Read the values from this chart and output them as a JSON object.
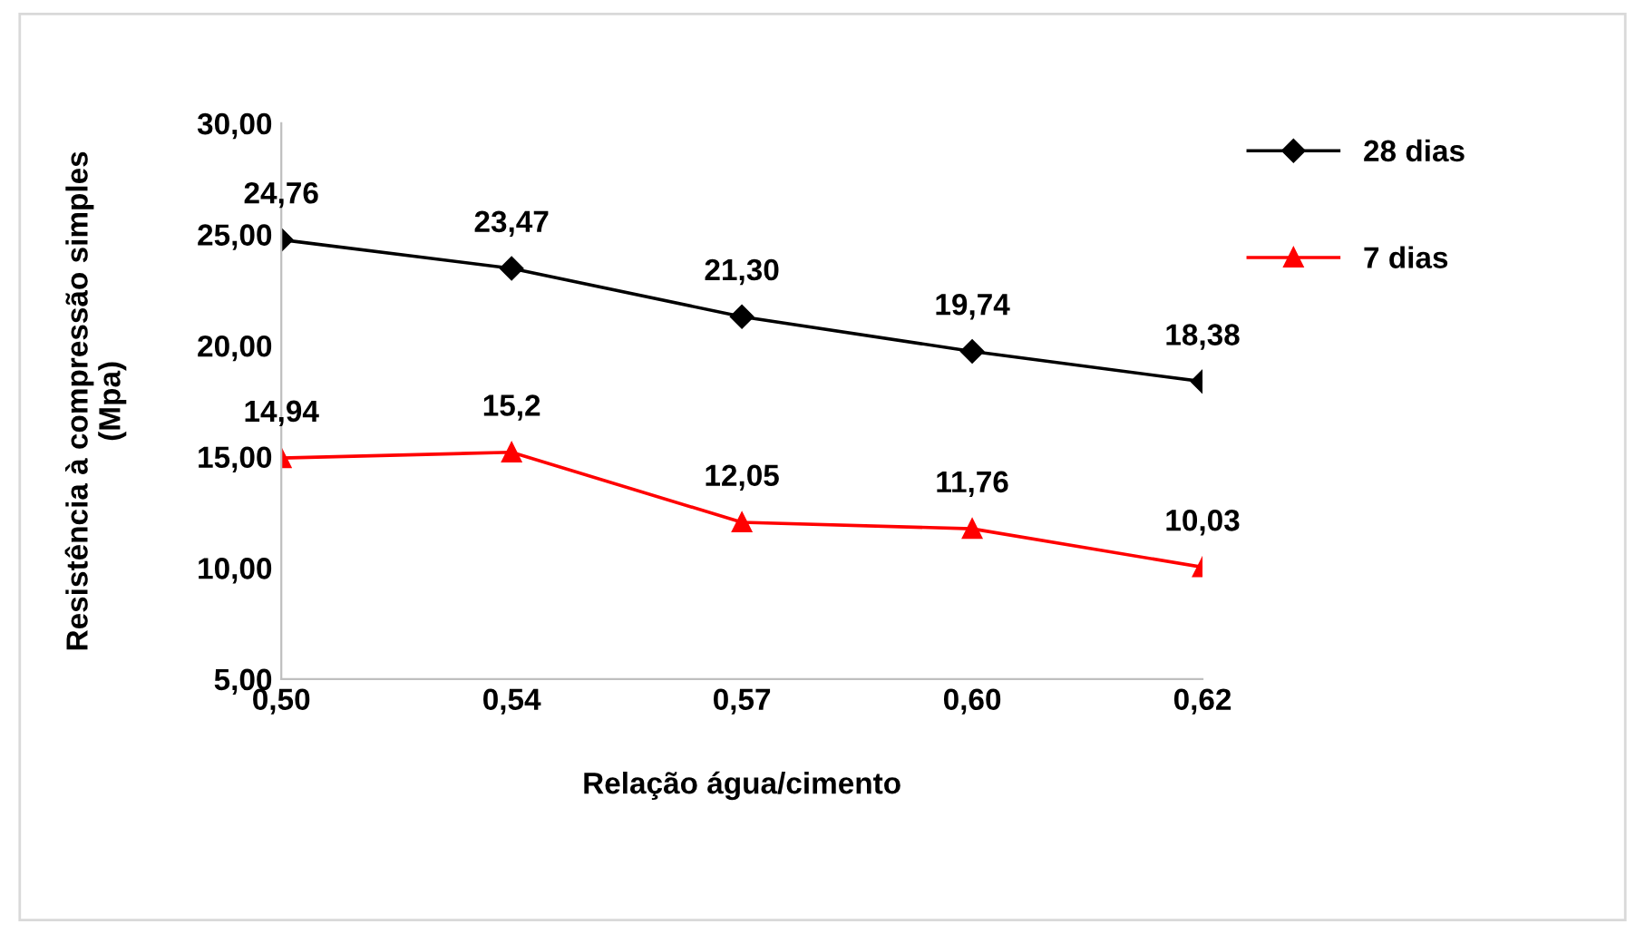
{
  "chart_data": {
    "type": "line",
    "xlabel": "Relação água/cimento",
    "ylabel": "Resistência à compressão simples\n(Mpa)",
    "categories": [
      "0,50",
      "0,54",
      "0,57",
      "0,60",
      "0,62"
    ],
    "series": [
      {
        "name": "28 dias",
        "color": "#000000",
        "marker": "diamond",
        "values": [
          24.76,
          23.47,
          21.3,
          19.74,
          18.38
        ],
        "value_labels": [
          "24,76",
          "23,47",
          "21,30",
          "19,74",
          "18,38"
        ]
      },
      {
        "name": "7 dias",
        "color": "#ff0000",
        "marker": "triangle",
        "values": [
          14.94,
          15.2,
          12.05,
          11.76,
          10.03
        ],
        "value_labels": [
          "14,94",
          "15,2",
          "12,05",
          "11,76",
          "10,03"
        ]
      }
    ],
    "ylim": [
      5,
      30
    ],
    "yticks": [
      {
        "value": 5,
        "label": "5,00"
      },
      {
        "value": 10,
        "label": "10,00"
      },
      {
        "value": 15,
        "label": "15,00"
      },
      {
        "value": 20,
        "label": "20,00"
      },
      {
        "value": 25,
        "label": "25,00"
      },
      {
        "value": 30,
        "label": "30,00"
      }
    ],
    "grid": false,
    "legend": "right",
    "line_style": "solid"
  }
}
